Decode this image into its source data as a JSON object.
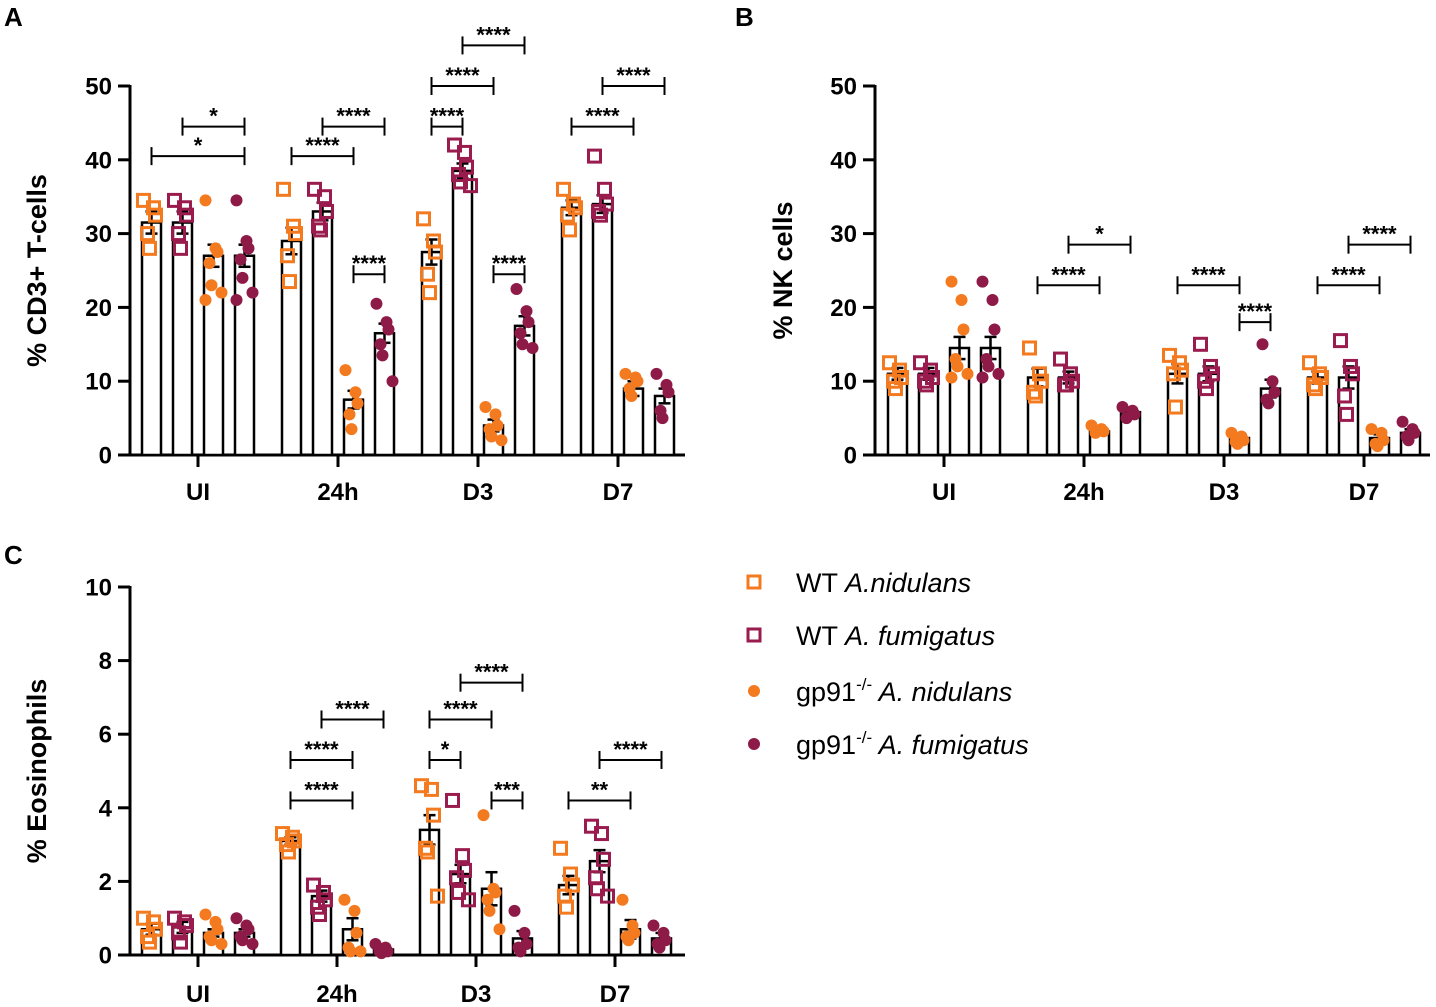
{
  "colors": {
    "wt_nidulans": "#F47A20",
    "wt_fumigatus": "#9A1B4E",
    "gp_nidulans": "#F47A20",
    "gp_fumigatus": "#8E1A47",
    "axis": "#000000"
  },
  "legend": {
    "items": [
      {
        "name": "wt-nidulans",
        "prefix": "WT ",
        "sup": "",
        "species": "A.nidulans",
        "marker": "square",
        "color": "#F47A20"
      },
      {
        "name": "wt-fumigatus",
        "prefix": "WT ",
        "sup": "",
        "species": "A. fumigatus",
        "marker": "square",
        "color": "#9A1B4E"
      },
      {
        "name": "gp91-nidulans",
        "prefix": "gp91",
        "sup": "-/-",
        "species": " A. nidulans",
        "marker": "circle",
        "color": "#F47A20"
      },
      {
        "name": "gp91-fumigatus",
        "prefix": "gp91",
        "sup": "-/-",
        "species": " A. fumigatus",
        "marker": "circle",
        "color": "#8E1A47"
      }
    ]
  },
  "chart_data": [
    {
      "panel": "A",
      "type": "bar",
      "ylabel": "% CD3+ T-cells",
      "ylim": [
        0,
        50
      ],
      "yticks": [
        0,
        10,
        20,
        30,
        40,
        50
      ],
      "categories": [
        "UI",
        "24h",
        "D3",
        "D7"
      ],
      "series": [
        {
          "name": "WT A.nidulans",
          "values": [
            31.5,
            29,
            27.5,
            33.5
          ],
          "sem": [
            1.5,
            1.8,
            1.7,
            1.0
          ],
          "points": [
            [
              34.5,
              33.5,
              32.5,
              30,
              28
            ],
            [
              36,
              31,
              30,
              27,
              23.5
            ],
            [
              32,
              29,
              27.5,
              24.5,
              22
            ],
            [
              36,
              34,
              33.5,
              32.5,
              30.5
            ]
          ]
        },
        {
          "name": "WT A. fumigatus",
          "values": [
            31.5,
            33,
            38.5,
            34
          ],
          "sem": [
            1.5,
            1.2,
            1.0,
            1.2
          ],
          "points": [
            [
              34.5,
              33.5,
              32.5,
              30,
              28
            ],
            [
              36,
              35,
              33,
              31,
              30.5
            ],
            [
              42,
              41,
              39,
              38,
              37,
              36.5
            ],
            [
              40.5,
              36,
              34,
              33,
              32.5
            ]
          ]
        },
        {
          "name": "gp91-/- A. nidulans",
          "values": [
            27,
            7.5,
            4,
            9
          ],
          "sem": [
            1.5,
            1.2,
            0.8,
            1.0
          ],
          "points": [
            [
              34.5,
              28,
              27.5,
              26,
              23,
              22,
              21
            ],
            [
              11.5,
              8.5,
              7,
              5.5,
              3.5
            ],
            [
              6.5,
              5.5,
              4,
              3.5,
              2.5,
              2
            ],
            [
              11,
              10.5,
              10,
              9,
              8
            ]
          ]
        },
        {
          "name": "gp91-/- A. fumigatus",
          "values": [
            27,
            16.5,
            17.5,
            8
          ],
          "sem": [
            1.5,
            1.3,
            1.3,
            1.0
          ],
          "points": [
            [
              34.5,
              29,
              28,
              26.5,
              24,
              22,
              21
            ],
            [
              20.5,
              18,
              17,
              15,
              13.5,
              10
            ],
            [
              22.5,
              19.5,
              18,
              16.5,
              15,
              14.5
            ],
            [
              11,
              9.5,
              8.5,
              6,
              5
            ]
          ]
        }
      ],
      "significance": [
        {
          "label": "*",
          "from": [
            0,
            0
          ],
          "to": [
            0,
            3
          ],
          "y": 40.5
        },
        {
          "label": "*",
          "from": [
            0,
            1
          ],
          "to": [
            0,
            3
          ],
          "y": 44.5,
          "from_override": [
            0,
            0.9
          ]
        },
        {
          "label": "****",
          "from": [
            1,
            0
          ],
          "to": [
            1,
            2
          ],
          "y": 40.5
        },
        {
          "label": "****",
          "from": [
            1,
            1
          ],
          "to": [
            1,
            3
          ],
          "y": 44.5
        },
        {
          "label": "****",
          "from": [
            1,
            2
          ],
          "to": [
            1,
            3
          ],
          "y": 24.5
        },
        {
          "label": "****",
          "from": [
            2,
            0
          ],
          "to": [
            2,
            1
          ],
          "y": 44.5
        },
        {
          "label": "****",
          "from": [
            2,
            0
          ],
          "to": [
            2,
            2
          ],
          "y": 50
        },
        {
          "label": "****",
          "from": [
            2,
            1
          ],
          "to": [
            2,
            3
          ],
          "y": 55.5
        },
        {
          "label": "****",
          "from": [
            2,
            2
          ],
          "to": [
            2,
            3
          ],
          "y": 24.5
        },
        {
          "label": "****",
          "from": [
            3,
            0
          ],
          "to": [
            3,
            2
          ],
          "y": 44.5
        },
        {
          "label": "****",
          "from": [
            3,
            1
          ],
          "to": [
            3,
            3
          ],
          "y": 50
        }
      ]
    },
    {
      "panel": "B",
      "type": "bar",
      "ylabel": "% NK cells",
      "ylim": [
        0,
        50
      ],
      "yticks": [
        0,
        10,
        20,
        30,
        40,
        50
      ],
      "categories": [
        "UI",
        "24h",
        "D3",
        "D7"
      ],
      "series": [
        {
          "name": "WT A.nidulans",
          "values": [
            11,
            10.5,
            11,
            10.5
          ],
          "sem": [
            0.8,
            1.2,
            1.3,
            0.8
          ],
          "points": [
            [
              12.5,
              11.5,
              10.5,
              10,
              9
            ],
            [
              14.5,
              11,
              10,
              8.5,
              8
            ],
            [
              13.5,
              12.5,
              11.5,
              11,
              6.5
            ],
            [
              12.5,
              11,
              10.5,
              9.5,
              9
            ]
          ]
        },
        {
          "name": "WT A. fumigatus",
          "values": [
            11,
            10.5,
            11,
            10.5
          ],
          "sem": [
            0.8,
            0.8,
            1.0,
            1.5
          ],
          "points": [
            [
              12.5,
              11.5,
              10.5,
              10,
              9.5
            ],
            [
              13,
              11,
              10,
              9.5,
              9.5
            ],
            [
              15,
              12,
              11,
              10,
              9
            ],
            [
              15.5,
              12,
              11,
              8,
              5.5
            ]
          ]
        },
        {
          "name": "gp91-/- A. nidulans",
          "values": [
            14.5,
            3.2,
            2.3,
            2.3
          ],
          "sem": [
            1.5,
            0.3,
            0.4,
            0.5
          ],
          "points": [
            [
              23.5,
              21,
              17,
              13,
              12,
              11,
              10.5
            ],
            [
              4,
              3.5,
              3.2,
              3
            ],
            [
              3,
              2.5,
              2,
              1.8,
              1.5
            ],
            [
              3.5,
              3,
              2,
              1.5,
              1.2
            ]
          ]
        },
        {
          "name": "gp91-/- A. fumigatus",
          "values": [
            14.5,
            5.8,
            9,
            3
          ],
          "sem": [
            1.5,
            0.4,
            1.2,
            0.5
          ],
          "points": [
            [
              23.5,
              21,
              17,
              13,
              12,
              11,
              10.5
            ],
            [
              6.5,
              6,
              5.5,
              5
            ],
            [
              15,
              10,
              8.5,
              7.5,
              7
            ],
            [
              4.5,
              3.5,
              3,
              2.5,
              2
            ]
          ]
        }
      ],
      "significance": [
        {
          "label": "****",
          "from": [
            1,
            0
          ],
          "to": [
            1,
            2
          ],
          "y": 23
        },
        {
          "label": "*",
          "from": [
            1,
            1
          ],
          "to": [
            1,
            3
          ],
          "y": 28.5
        },
        {
          "label": "****",
          "from": [
            2,
            0
          ],
          "to": [
            2,
            2
          ],
          "y": 23
        },
        {
          "label": "****",
          "from": [
            2,
            2
          ],
          "to": [
            2,
            3
          ],
          "y": 18
        },
        {
          "label": "****",
          "from": [
            3,
            0
          ],
          "to": [
            3,
            2
          ],
          "y": 23
        },
        {
          "label": "****",
          "from": [
            3,
            1
          ],
          "to": [
            3,
            3
          ],
          "y": 28.5
        }
      ]
    },
    {
      "panel": "C",
      "type": "bar",
      "ylabel": "% Eosinophils",
      "ylim": [
        0,
        10
      ],
      "yticks": [
        0,
        2,
        4,
        6,
        8,
        10
      ],
      "categories": [
        "UI",
        "24h",
        "D3",
        "D7"
      ],
      "series": [
        {
          "name": "WT A.nidulans",
          "values": [
            0.7,
            3.1,
            3.4,
            1.9
          ],
          "sem": [
            0.15,
            0.1,
            0.4,
            0.25
          ],
          "points": [
            [
              1.0,
              0.9,
              0.7,
              0.5,
              0.35
            ],
            [
              3.3,
              3.2,
              3.1,
              3.0,
              2.8
            ],
            [
              4.6,
              4.5,
              3.8,
              2.9,
              2.8,
              1.6
            ],
            [
              2.9,
              2.2,
              1.9,
              1.6,
              1.3
            ]
          ]
        },
        {
          "name": "WT A. fumigatus",
          "values": [
            0.75,
            1.6,
            2.2,
            2.55
          ],
          "sem": [
            0.15,
            0.15,
            0.25,
            0.3
          ],
          "points": [
            [
              1.0,
              0.9,
              0.8,
              0.6,
              0.35
            ],
            [
              1.9,
              1.7,
              1.5,
              1.3,
              1.1
            ],
            [
              4.2,
              2.7,
              2.3,
              2.1,
              1.7,
              1.5
            ],
            [
              3.5,
              3.3,
              2.6,
              2.1,
              1.8,
              1.6
            ]
          ]
        },
        {
          "name": "gp91-/- A. nidulans",
          "values": [
            0.6,
            0.7,
            1.8,
            0.7
          ],
          "sem": [
            0.1,
            0.3,
            0.45,
            0.25
          ],
          "points": [
            [
              1.1,
              0.9,
              0.7,
              0.5,
              0.4,
              0.3
            ],
            [
              1.5,
              1.2,
              0.6,
              0.2,
              0.1,
              0.1
            ],
            [
              3.8,
              1.8,
              1.7,
              1.5,
              1.2,
              0.7
            ],
            [
              1.5,
              0.8,
              0.6,
              0.5,
              0.4
            ]
          ]
        },
        {
          "name": "gp91-/- A. fumigatus",
          "values": [
            0.6,
            0.15,
            0.45,
            0.45
          ],
          "sem": [
            0.1,
            0.05,
            0.2,
            0.15
          ],
          "points": [
            [
              1.0,
              0.8,
              0.7,
              0.5,
              0.4,
              0.3
            ],
            [
              0.3,
              0.2,
              0.1,
              0.1,
              0.05
            ],
            [
              1.2,
              0.6,
              0.3,
              0.2,
              0.1
            ],
            [
              0.8,
              0.6,
              0.4,
              0.3,
              0.2
            ]
          ]
        }
      ],
      "significance": [
        {
          "label": "****",
          "from": [
            1,
            0
          ],
          "to": [
            1,
            2
          ],
          "y": 4.2
        },
        {
          "label": "****",
          "from": [
            1,
            0
          ],
          "to": [
            1,
            2
          ],
          "y": 5.3
        },
        {
          "label": "****",
          "from": [
            1,
            1
          ],
          "to": [
            1,
            3
          ],
          "y": 6.4
        },
        {
          "label": "*",
          "from": [
            2,
            0
          ],
          "to": [
            2,
            1
          ],
          "y": 5.3
        },
        {
          "label": "****",
          "from": [
            2,
            0
          ],
          "to": [
            2,
            2
          ],
          "y": 6.4
        },
        {
          "label": "****",
          "from": [
            2,
            1
          ],
          "to": [
            2,
            3
          ],
          "y": 7.4
        },
        {
          "label": "***",
          "from": [
            2,
            2
          ],
          "to": [
            2,
            3
          ],
          "y": 4.2
        },
        {
          "label": "**",
          "from": [
            3,
            0
          ],
          "to": [
            3,
            2
          ],
          "y": 4.2
        },
        {
          "label": "****",
          "from": [
            3,
            1
          ],
          "to": [
            3,
            3
          ],
          "y": 5.3
        }
      ]
    }
  ]
}
